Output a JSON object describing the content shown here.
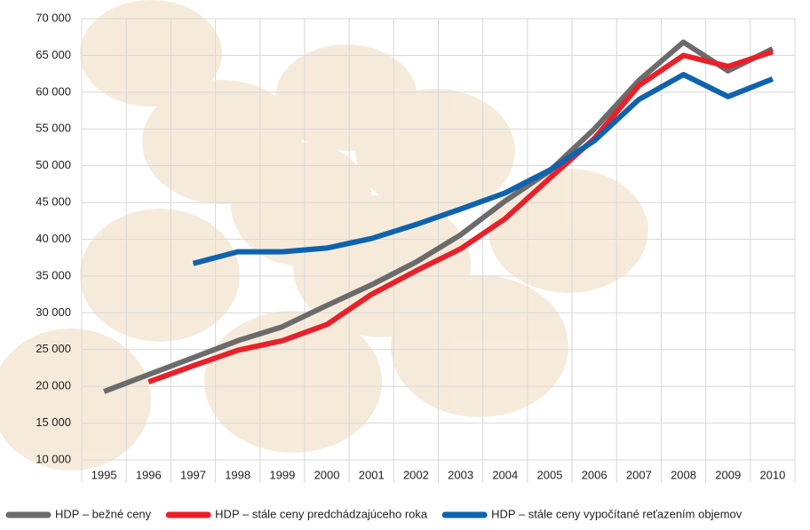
{
  "chart_data": {
    "type": "line",
    "categories": [
      "1995",
      "1996",
      "1997",
      "1998",
      "1999",
      "2000",
      "2001",
      "2002",
      "2003",
      "2004",
      "2005",
      "2006",
      "2007",
      "2008",
      "2009",
      "2010"
    ],
    "series": [
      {
        "name": "HDP – bežné ceny",
        "color": "#6b6b6b",
        "values": [
          19300,
          21600,
          23900,
          26200,
          28100,
          31000,
          33800,
          36900,
          40600,
          45200,
          49300,
          55000,
          61600,
          66800,
          62900,
          65900
        ]
      },
      {
        "name": "HDP – stále ceny predchádzajúceho roka",
        "color": "#e8202a",
        "values": [
          null,
          20600,
          22800,
          24900,
          26200,
          28400,
          32500,
          35700,
          38700,
          42800,
          48300,
          53700,
          60900,
          65000,
          63500,
          65500
        ]
      },
      {
        "name": "HDP – stále ceny vypočítané reťazením objemov",
        "color": "#0f62ad",
        "values": [
          null,
          null,
          36700,
          38300,
          38300,
          38800,
          40100,
          42000,
          44100,
          46300,
          49400,
          53400,
          59000,
          62400,
          59400,
          61800
        ]
      }
    ],
    "ylim": [
      10000,
      70000
    ],
    "yticks": [
      {
        "value": 10000,
        "label": "10 000"
      },
      {
        "value": 15000,
        "label": "15 000"
      },
      {
        "value": 20000,
        "label": "20 000"
      },
      {
        "value": 25000,
        "label": "25 000"
      },
      {
        "value": 30000,
        "label": "30 000"
      },
      {
        "value": 35000,
        "label": "35 000"
      },
      {
        "value": 40000,
        "label": "40 000"
      },
      {
        "value": 45000,
        "label": "45 000"
      },
      {
        "value": 50000,
        "label": "50 000"
      },
      {
        "value": 55000,
        "label": "55 000"
      },
      {
        "value": 60000,
        "label": "60 000"
      },
      {
        "value": 65000,
        "label": "65 000"
      },
      {
        "value": 70000,
        "label": "70 000"
      }
    ],
    "grid": true
  }
}
